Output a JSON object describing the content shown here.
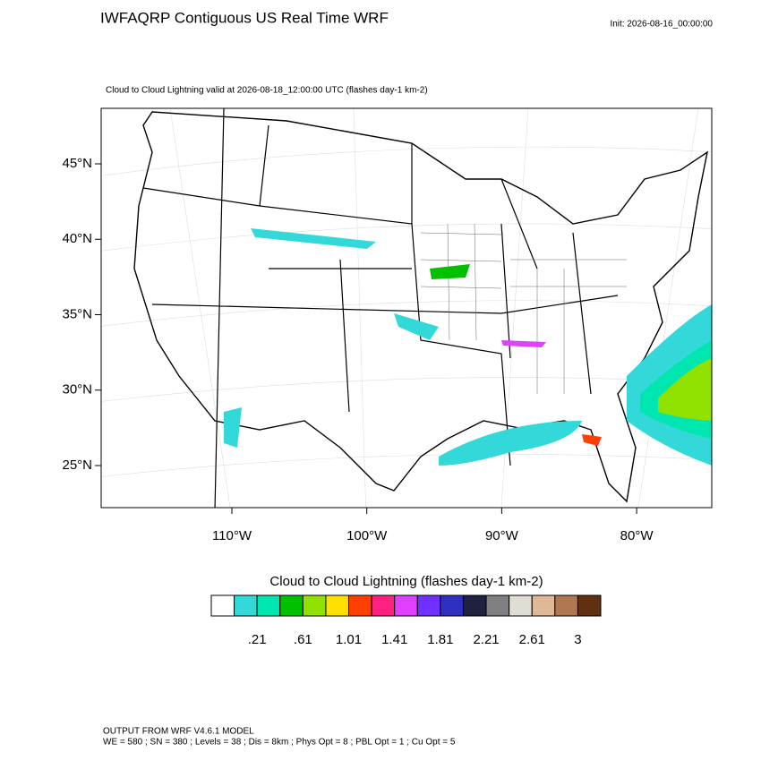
{
  "header": {
    "title": "IWFAQRP Contiguous US Real Time WRF",
    "init": "Init: 2026-08-16_00:00:00"
  },
  "map": {
    "caption": "Cloud to Cloud Lightning valid at 2026-08-18_12:00:00 UTC   (flashes day-1 km-2)",
    "lat_labels": [
      "45°N",
      "40°N",
      "35°N",
      "30°N",
      "25°N"
    ],
    "lon_labels": [
      "110°W",
      "100°W",
      "90°W",
      "80°W"
    ]
  },
  "colorbar": {
    "title": "Cloud to Cloud Lightning  (flashes day-1 km-2)",
    "colors": [
      "#ffffff",
      "#33d9d9",
      "#00e6b0",
      "#00c000",
      "#90e000",
      "#ffe000",
      "#ff4000",
      "#ff2080",
      "#e040ff",
      "#7030ff",
      "#3030c0",
      "#202040",
      "#808080",
      "#e0ddd5",
      "#e0b898",
      "#b07850",
      "#603010"
    ],
    "labels": [
      ".21",
      ".61",
      "1.01",
      "1.41",
      "1.81",
      "2.21",
      "2.61",
      "3"
    ]
  },
  "footer": {
    "lines": [
      "OUTPUT FROM WRF V4.6.1 MODEL",
      "WE = 580 ; SN = 380 ; Levels = 38 ; Dis = 8km ; Phys Opt = 8 ; PBL Opt = 1 ; Cu Opt = 5"
    ]
  }
}
